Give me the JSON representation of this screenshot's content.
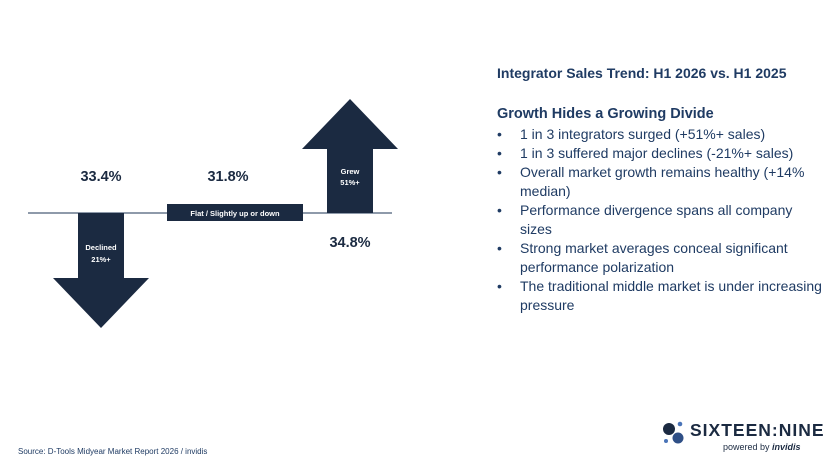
{
  "chart_data": {
    "type": "bar",
    "title": "Integrator Sales Trend: H1 2026 vs. H1 2025",
    "categories": [
      "Declined 21%+",
      "Flat / Slightly up or down",
      "Grew 51%+"
    ],
    "values": [
      33.4,
      31.8,
      34.8
    ],
    "value_labels": [
      "33.4%",
      "31.8%",
      "34.8%"
    ],
    "direction": [
      "down",
      "flat",
      "up"
    ],
    "arrow_labels": {
      "declined": [
        "Declined",
        "21%+"
      ],
      "flat": "Flat / Slightly up or down",
      "grew": [
        "Grew",
        "51%+"
      ]
    }
  },
  "panel": {
    "title": "Integrator Sales Trend: H1 2026 vs. H1 2025",
    "subhead": "Growth Hides a Growing Divide",
    "bullets": [
      "1 in 3 integrators surged (+51%+ sales)",
      "1 in 3 suffered major declines (-21%+ sales)",
      "Overall market growth remains healthy (+14% median)",
      "Performance divergence spans all company sizes",
      "Strong market averages conceal significant performance polarization",
      "The traditional middle market is under increasing pressure"
    ]
  },
  "source": "Source: D-Tools Midyear Market Report 2026 / invidis",
  "logo": {
    "main": "SIXTEEN:NINE",
    "sub_prefix": "powered by",
    "sub_brand": "invidis",
    "icon": "sixteen-nine-logo-icon"
  },
  "colors": {
    "navy": "#1b2a41",
    "text_blue": "#1f3b63",
    "baseline": "#4a5d78",
    "background": "#ffffff"
  }
}
